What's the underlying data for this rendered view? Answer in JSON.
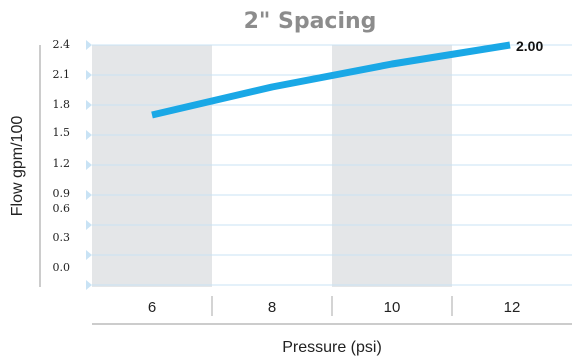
{
  "chart_data": {
    "type": "line",
    "title": "2\" Spacing",
    "xlabel": "Pressure (psi)",
    "ylabel": "Flow gpm/100",
    "categories": [
      "6",
      "8",
      "10",
      "12"
    ],
    "y_tick_labels": [
      "2.4",
      "2.1",
      "1.8",
      "1.5",
      "1.2",
      "0.9",
      "0.6",
      "0.3",
      "0.0"
    ],
    "series": [
      {
        "values": [
          1.7,
          1.98,
          2.21,
          2.4
        ],
        "color": "#1aa8e6"
      }
    ],
    "end_label": "2.00",
    "ylim": [
      -0.3,
      2.4
    ],
    "grid": true,
    "alternating_band_color": "#e4e6e8",
    "grid_color": "#c9e3f5"
  }
}
